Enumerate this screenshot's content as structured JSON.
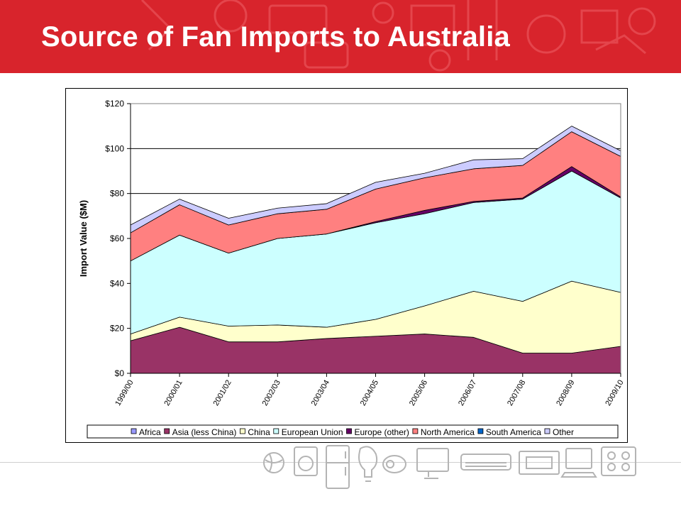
{
  "slide": {
    "title": "Source of Fan Imports to Australia"
  },
  "colors": {
    "banner": "#d8242c",
    "Africa": "#9999ff",
    "Asia (less China)": "#993366",
    "China": "#ffffcc",
    "European Union": "#ccffff",
    "Europe (other)": "#660066",
    "North America": "#ff8080",
    "South America": "#0066cc",
    "Other": "#ccccff"
  },
  "footer_icons": [
    "globe-icon",
    "washing-machine-icon",
    "refrigerator-icon",
    "light-bulb-icon",
    "vacuum-cleaner-icon",
    "television-icon",
    "air-conditioner-icon",
    "heater-icon",
    "computer-icon",
    "cooktop-icon"
  ],
  "chart_data": {
    "type": "area",
    "stacked": true,
    "title": "",
    "xlabel": "",
    "ylabel": "Import Value ($M)",
    "ylim": [
      0,
      120
    ],
    "yticks": [
      0,
      20,
      40,
      60,
      80,
      100,
      120
    ],
    "ytick_labels": [
      "$0",
      "$20",
      "$40",
      "$60",
      "$80",
      "$100",
      "$120"
    ],
    "grid": true,
    "legend_position": "bottom",
    "categories": [
      "1999/00",
      "2000/01",
      "2001/02",
      "2002/03",
      "2003/04",
      "2004/05",
      "2005/06",
      "2006/07",
      "2007/08",
      "2008/09",
      "2009/10"
    ],
    "series": [
      {
        "name": "Africa",
        "values": [
          0,
          0,
          0,
          0,
          0,
          0,
          0,
          0,
          0,
          0,
          0
        ]
      },
      {
        "name": "Asia (less China)",
        "values": [
          14.5,
          20.5,
          14,
          14,
          15.5,
          16.5,
          17.5,
          16,
          9,
          9,
          12
        ]
      },
      {
        "name": "China",
        "values": [
          3,
          4.5,
          7,
          7.5,
          5,
          7.5,
          12.5,
          20.5,
          23,
          32,
          24
        ]
      },
      {
        "name": "European Union",
        "values": [
          32.5,
          36.5,
          32.5,
          38.5,
          41.5,
          43,
          41,
          39.5,
          45.5,
          49,
          42
        ]
      },
      {
        "name": "Europe (other)",
        "values": [
          0,
          0,
          0,
          0,
          0,
          0.5,
          1.5,
          0.5,
          0.5,
          2,
          0.5
        ]
      },
      {
        "name": "North America",
        "values": [
          12.5,
          13.5,
          12.5,
          11,
          11,
          14.5,
          14.5,
          14.5,
          14.5,
          15.5,
          18
        ]
      },
      {
        "name": "South America",
        "values": [
          0,
          0,
          0,
          0,
          0,
          0,
          0,
          0,
          0,
          0,
          0
        ]
      },
      {
        "name": "Other",
        "values": [
          3.5,
          2.5,
          3,
          2.5,
          2.5,
          3,
          2,
          4,
          3,
          2.5,
          2.5
        ]
      }
    ]
  }
}
